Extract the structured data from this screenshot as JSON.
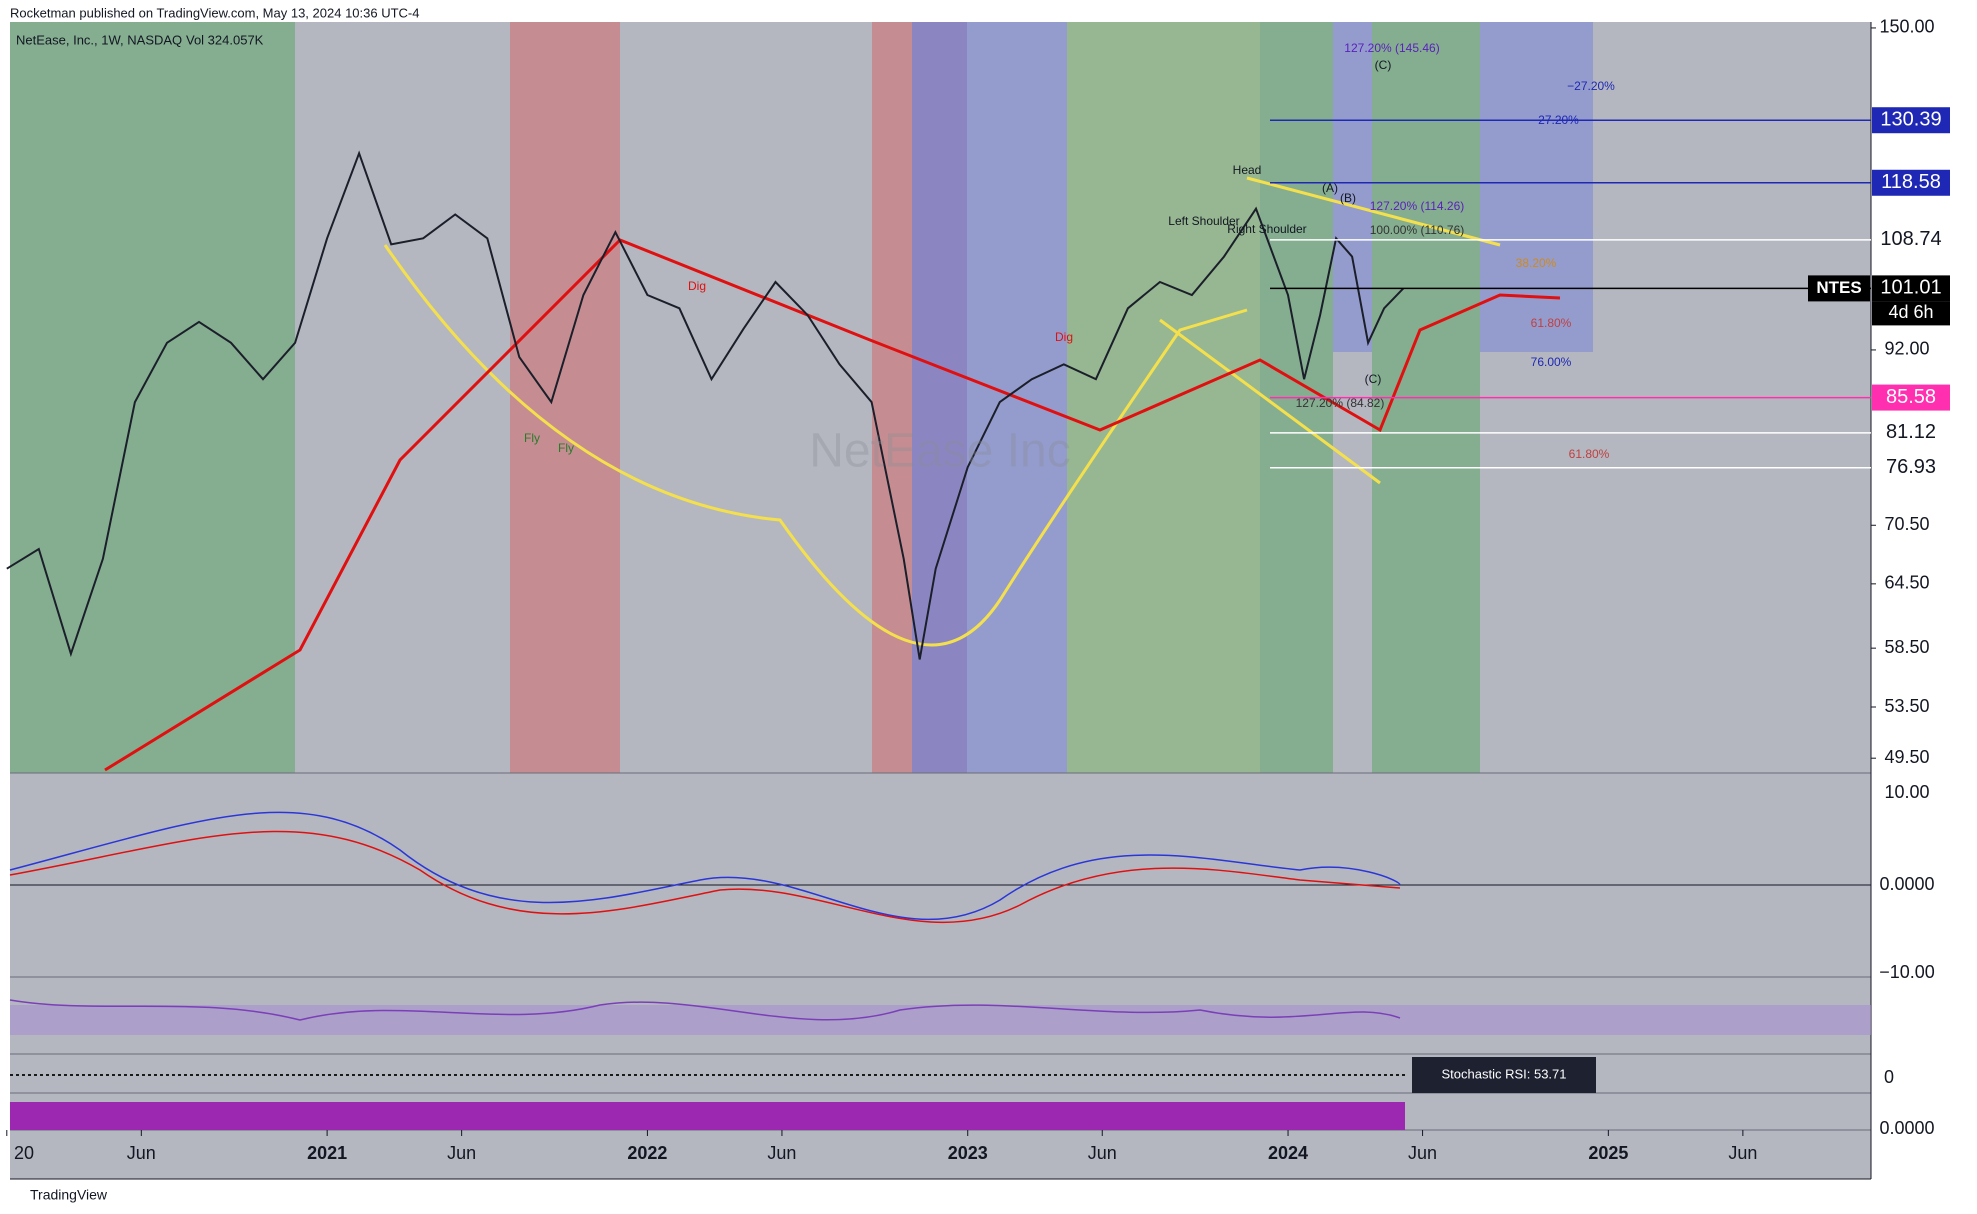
{
  "header": "Rocketman published on TradingView.com, May 13, 2024 10:36 UTC-4",
  "footer": "TradingView",
  "chart_data": {
    "type": "line",
    "title": "NetEase, Inc., 1W, NASDAQ",
    "volume_label": "Vol 324.057K",
    "ticker": "NTES",
    "countdown": "4d 6h",
    "log_scale": true,
    "series": [
      {
        "name": "NTES",
        "color": "#1b1f2a",
        "x": [
          2020.0,
          2020.1,
          2020.2,
          2020.3,
          2020.4,
          2020.5,
          2020.6,
          2020.7,
          2020.8,
          2020.9,
          2021.0,
          2021.1,
          2021.2,
          2021.3,
          2021.4,
          2021.5,
          2021.6,
          2021.7,
          2021.8,
          2021.9,
          2022.0,
          2022.1,
          2022.2,
          2022.3,
          2022.4,
          2022.5,
          2022.6,
          2022.7,
          2022.8,
          2022.85,
          2022.9,
          2023.0,
          2023.1,
          2023.2,
          2023.3,
          2023.4,
          2023.5,
          2023.6,
          2023.7,
          2023.8,
          2023.9,
          2024.0,
          2024.05,
          2024.1,
          2024.15,
          2024.2,
          2024.25,
          2024.3,
          2024.36
        ],
        "values": [
          66,
          68,
          58,
          67,
          85,
          93,
          96,
          93,
          88,
          93,
          109,
          124,
          108,
          109,
          113,
          109,
          91,
          85,
          100,
          110,
          100,
          98,
          88,
          95,
          102,
          97,
          90,
          85,
          67,
          57.5,
          66,
          77,
          85,
          88,
          90,
          88,
          98,
          102,
          100,
          106,
          114,
          100,
          88,
          97,
          109,
          106,
          93,
          98,
          101.01
        ]
      }
    ],
    "xlim": [
      2020.01,
      2025.82
    ],
    "xticks": [
      {
        "value": 2020,
        "label": "20"
      },
      {
        "value": 2020.42,
        "label": "Jun"
      },
      2021,
      {
        "value": 2021.42,
        "label": "Jun"
      },
      2022,
      {
        "value": 2022.42,
        "label": "Jun"
      },
      2023,
      {
        "value": 2023.42,
        "label": "Jun"
      },
      2024,
      {
        "value": 2024.42,
        "label": "Jun"
      },
      2025,
      {
        "value": 2025.42,
        "label": "Jun"
      }
    ],
    "ylim": [
      48.4,
      156.5
    ],
    "yticks": [
      {
        "value": 150,
        "label": "150.00"
      },
      {
        "value": 92,
        "label": "92.00"
      },
      {
        "value": 70.5,
        "label": "70.50"
      },
      {
        "value": 64.5,
        "label": "64.50"
      },
      {
        "value": 58.5,
        "label": "58.50"
      },
      {
        "value": 53.5,
        "label": "53.50"
      },
      {
        "value": 49.5,
        "label": "49.50"
      }
    ],
    "levels": [
      {
        "value": 130.39,
        "color": "#1e28b4",
        "text_color": "#ffffff"
      },
      {
        "value": 118.58,
        "color": "#1e28b4",
        "text_color": "#ffffff"
      },
      {
        "value": 108.74,
        "color": "#ffffff",
        "text_color": "#131722"
      },
      {
        "value": 101.01,
        "color": "#000000",
        "text_color": "#ffffff"
      },
      {
        "value": 85.58,
        "color": "#ff2fb0",
        "text_color": "#ffffff"
      },
      {
        "value": 81.12,
        "color": "#ffffff",
        "text_color": "#131722"
      },
      {
        "value": 76.93,
        "color": "#ffffff",
        "text_color": "#131722"
      }
    ],
    "annotations": [
      "Head",
      "Left Shoulder",
      "Right Shoulder",
      "127.20% (145.46)",
      "−27.20%",
      "−27.20%",
      "127.20% (114.26)",
      "100.00% (110.76)",
      "38.20%",
      "61.80%",
      "76.00%",
      "127.20% (84.82)",
      "61.80%",
      "(B)",
      "(A)",
      "(C)",
      "(C)",
      "Dig",
      "Dig",
      "Fly",
      "Fly",
      "NetEase Inc"
    ],
    "indicator_axis_labels": [
      "10.00",
      "0.0000",
      "−10.00",
      "0",
      "0.0000"
    ],
    "stoch_rsi_label": "Stochastic RSI: 53.71"
  }
}
